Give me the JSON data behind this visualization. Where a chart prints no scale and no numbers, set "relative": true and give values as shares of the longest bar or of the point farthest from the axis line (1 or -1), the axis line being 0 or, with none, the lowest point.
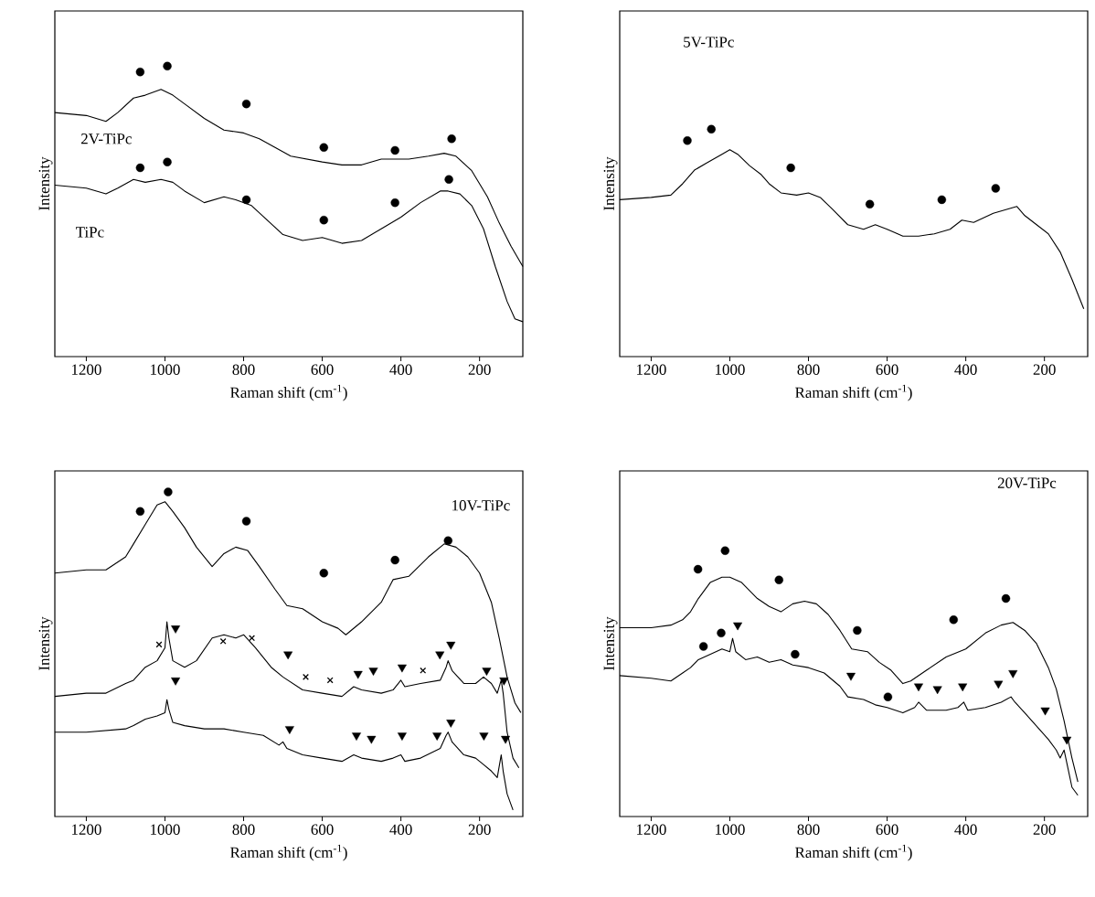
{
  "chart_data": [
    {
      "type": "line",
      "relative": true,
      "xlim": [
        1280,
        90
      ],
      "xticks": [
        1200,
        1000,
        800,
        600,
        400,
        200
      ],
      "xlabel": "Raman shift (cm$^{-1}$)",
      "ylabel": "Intensity",
      "annotations": [
        "2V-TiPc",
        "TiPc"
      ],
      "series": [
        {
          "type": "line",
          "color": "#000000",
          "x": [
            1280,
            1200,
            1150,
            1120,
            1080,
            1050,
            1010,
            980,
            950,
            900,
            850,
            800,
            760,
            720,
            680,
            640,
            600,
            550,
            500,
            450,
            420,
            380,
            330,
            290,
            260,
            220,
            180,
            150,
            120,
            90
          ],
          "values": [
            0.84,
            0.83,
            0.81,
            0.84,
            0.89,
            0.9,
            0.92,
            0.9,
            0.87,
            0.82,
            0.78,
            0.77,
            0.75,
            0.72,
            0.69,
            0.68,
            0.67,
            0.66,
            0.66,
            0.68,
            0.68,
            0.68,
            0.69,
            0.7,
            0.69,
            0.64,
            0.55,
            0.46,
            0.38,
            0.31
          ]
        },
        {
          "type": "line",
          "color": "#000000",
          "x": [
            1280,
            1200,
            1150,
            1120,
            1080,
            1050,
            1010,
            980,
            950,
            900,
            850,
            820,
            780,
            740,
            700,
            650,
            600,
            550,
            500,
            450,
            400,
            350,
            300,
            280,
            250,
            220,
            190,
            160,
            130,
            110,
            90
          ],
          "values": [
            0.59,
            0.58,
            0.56,
            0.58,
            0.61,
            0.6,
            0.61,
            0.6,
            0.57,
            0.53,
            0.55,
            0.54,
            0.52,
            0.47,
            0.42,
            0.4,
            0.41,
            0.39,
            0.4,
            0.44,
            0.48,
            0.53,
            0.57,
            0.57,
            0.56,
            0.52,
            0.44,
            0.31,
            0.19,
            0.13,
            0.12
          ]
        },
        {
          "type": "scatter",
          "marker": "circle",
          "color": "#000000",
          "x": [
            1063,
            994,
            793,
            596,
            415,
            271
          ],
          "values": [
            0.98,
            1.0,
            0.87,
            0.72,
            0.71,
            0.75
          ]
        },
        {
          "type": "scatter",
          "marker": "circle",
          "color": "#000000",
          "x": [
            1063,
            994,
            793,
            596,
            415,
            278
          ],
          "values": [
            0.65,
            0.67,
            0.54,
            0.47,
            0.53,
            0.61
          ]
        }
      ]
    },
    {
      "type": "line",
      "relative": true,
      "xlim": [
        1280,
        90
      ],
      "xticks": [
        1200,
        1000,
        800,
        600,
        400,
        200
      ],
      "xlabel": "Raman shift (cm$^{-1}$)",
      "ylabel": "Intensity",
      "annotations": [
        "5V-TiPc"
      ],
      "series": [
        {
          "type": "line",
          "color": "#000000",
          "x": [
            1280,
            1200,
            1150,
            1120,
            1090,
            1060,
            1020,
            1000,
            980,
            950,
            920,
            900,
            870,
            830,
            800,
            770,
            740,
            700,
            660,
            630,
            600,
            560,
            520,
            480,
            440,
            410,
            380,
            330,
            290,
            270,
            250,
            220,
            190,
            160,
            130,
            100
          ],
          "values": [
            0.69,
            0.7,
            0.71,
            0.76,
            0.82,
            0.85,
            0.89,
            0.91,
            0.89,
            0.84,
            0.8,
            0.76,
            0.72,
            0.71,
            0.72,
            0.7,
            0.65,
            0.58,
            0.56,
            0.58,
            0.56,
            0.53,
            0.53,
            0.54,
            0.56,
            0.6,
            0.59,
            0.63,
            0.65,
            0.66,
            0.62,
            0.58,
            0.54,
            0.46,
            0.34,
            0.21
          ]
        },
        {
          "type": "scatter",
          "marker": "circle",
          "color": "#000000",
          "x": [
            1108,
            1047,
            845,
            644,
            461,
            324
          ],
          "values": [
            0.95,
            1.0,
            0.83,
            0.67,
            0.69,
            0.74
          ]
        }
      ]
    },
    {
      "type": "line",
      "relative": true,
      "xlim": [
        1280,
        90
      ],
      "xticks": [
        1200,
        1000,
        800,
        600,
        400,
        200
      ],
      "xlabel": "Raman shift (cm$^{-1}$)",
      "ylabel": "Intensity",
      "annotations": [
        "10V-TiPc"
      ],
      "series": [
        {
          "type": "line",
          "color": "#000000",
          "x": [
            1280,
            1200,
            1150,
            1100,
            1080,
            1050,
            1020,
            1000,
            980,
            950,
            920,
            880,
            850,
            820,
            790,
            760,
            720,
            690,
            650,
            600,
            560,
            540,
            500,
            450,
            420,
            380,
            330,
            290,
            260,
            230,
            200,
            170,
            150,
            130,
            110,
            95
          ],
          "values": [
            0.75,
            0.76,
            0.76,
            0.8,
            0.84,
            0.9,
            0.96,
            0.97,
            0.94,
            0.89,
            0.83,
            0.77,
            0.81,
            0.83,
            0.82,
            0.77,
            0.7,
            0.65,
            0.64,
            0.6,
            0.58,
            0.56,
            0.6,
            0.66,
            0.73,
            0.74,
            0.8,
            0.84,
            0.83,
            0.8,
            0.75,
            0.66,
            0.55,
            0.43,
            0.35,
            0.32
          ]
        },
        {
          "type": "line",
          "color": "#000000",
          "x": [
            1280,
            1200,
            1150,
            1100,
            1080,
            1050,
            1020,
            1000,
            995,
            990,
            980,
            950,
            920,
            880,
            850,
            820,
            800,
            770,
            730,
            700,
            650,
            600,
            550,
            520,
            500,
            450,
            420,
            400,
            390,
            350,
            300,
            285,
            280,
            270,
            240,
            210,
            190,
            170,
            155,
            145,
            140,
            130,
            115,
            100
          ],
          "values": [
            0.37,
            0.38,
            0.38,
            0.41,
            0.42,
            0.46,
            0.48,
            0.52,
            0.6,
            0.55,
            0.48,
            0.46,
            0.48,
            0.55,
            0.56,
            0.55,
            0.56,
            0.52,
            0.46,
            0.43,
            0.39,
            0.38,
            0.37,
            0.4,
            0.39,
            0.38,
            0.39,
            0.42,
            0.4,
            0.41,
            0.42,
            0.46,
            0.48,
            0.45,
            0.41,
            0.41,
            0.43,
            0.41,
            0.38,
            0.42,
            0.38,
            0.26,
            0.18,
            0.15
          ]
        },
        {
          "type": "line",
          "color": "#000000",
          "x": [
            1280,
            1200,
            1100,
            1080,
            1050,
            1020,
            1000,
            995,
            990,
            980,
            950,
            900,
            850,
            800,
            750,
            710,
            700,
            690,
            650,
            600,
            550,
            520,
            500,
            450,
            420,
            400,
            390,
            350,
            300,
            285,
            280,
            270,
            240,
            210,
            190,
            170,
            155,
            145,
            140,
            130,
            115
          ],
          "values": [
            0.26,
            0.26,
            0.27,
            0.28,
            0.3,
            0.31,
            0.32,
            0.36,
            0.33,
            0.29,
            0.28,
            0.27,
            0.27,
            0.26,
            0.25,
            0.22,
            0.23,
            0.21,
            0.19,
            0.18,
            0.17,
            0.19,
            0.18,
            0.17,
            0.18,
            0.19,
            0.17,
            0.18,
            0.21,
            0.25,
            0.26,
            0.23,
            0.19,
            0.18,
            0.16,
            0.14,
            0.12,
            0.19,
            0.14,
            0.07,
            0.02
          ]
        },
        {
          "type": "scatter",
          "marker": "circle",
          "color": "#000000",
          "x": [
            1063,
            992,
            793,
            596,
            415,
            280
          ],
          "values": [
            0.94,
            1.0,
            0.91,
            0.75,
            0.79,
            0.85
          ]
        },
        {
          "type": "scatter",
          "marker": "triangle",
          "color": "#000000",
          "x": [
            973,
            687,
            509,
            470,
            397,
            301,
            273,
            182,
            138
          ],
          "values": [
            0.58,
            0.5,
            0.44,
            0.45,
            0.46,
            0.5,
            0.53,
            0.45,
            0.42
          ]
        },
        {
          "type": "scatter",
          "marker": "cross",
          "color": "#000000",
          "x": [
            1015,
            852,
            779,
            642,
            580,
            344
          ],
          "values": [
            0.53,
            0.54,
            0.55,
            0.43,
            0.42,
            0.45
          ]
        },
        {
          "type": "scatter",
          "marker": "triangle",
          "color": "#000000",
          "x": [
            973,
            683,
            513,
            475,
            397,
            308,
            273,
            189,
            134
          ],
          "values": [
            0.42,
            0.27,
            0.25,
            0.24,
            0.25,
            0.25,
            0.29,
            0.25,
            0.24
          ]
        }
      ]
    },
    {
      "type": "line",
      "relative": true,
      "xlim": [
        1280,
        90
      ],
      "xticks": [
        1200,
        1000,
        800,
        600,
        400,
        200
      ],
      "xlabel": "Raman shift (cm$^{-1}$)",
      "ylabel": "Intensity",
      "annotations": [
        "20V-TiPc"
      ],
      "series": [
        {
          "type": "line",
          "color": "#000000",
          "x": [
            1280,
            1200,
            1150,
            1120,
            1100,
            1080,
            1050,
            1020,
            1000,
            970,
            930,
            900,
            870,
            840,
            810,
            780,
            750,
            720,
            690,
            650,
            620,
            590,
            560,
            540,
            500,
            450,
            400,
            350,
            310,
            280,
            250,
            220,
            190,
            170,
            150,
            130,
            115
          ],
          "values": [
            0.71,
            0.71,
            0.72,
            0.74,
            0.77,
            0.82,
            0.88,
            0.9,
            0.9,
            0.88,
            0.82,
            0.79,
            0.77,
            0.8,
            0.81,
            0.8,
            0.76,
            0.7,
            0.63,
            0.62,
            0.58,
            0.55,
            0.5,
            0.51,
            0.55,
            0.6,
            0.63,
            0.69,
            0.72,
            0.73,
            0.7,
            0.65,
            0.56,
            0.48,
            0.36,
            0.22,
            0.13
          ]
        },
        {
          "type": "line",
          "color": "#000000",
          "x": [
            1280,
            1200,
            1150,
            1120,
            1100,
            1080,
            1050,
            1020,
            1000,
            993,
            985,
            960,
            930,
            900,
            870,
            840,
            800,
            760,
            720,
            700,
            660,
            630,
            600,
            560,
            530,
            520,
            500,
            450,
            420,
            405,
            395,
            350,
            310,
            285,
            275,
            250,
            220,
            190,
            170,
            160,
            150,
            140,
            130,
            115
          ],
          "values": [
            0.53,
            0.52,
            0.51,
            0.54,
            0.56,
            0.59,
            0.61,
            0.63,
            0.62,
            0.67,
            0.62,
            0.59,
            0.6,
            0.58,
            0.59,
            0.57,
            0.56,
            0.54,
            0.49,
            0.45,
            0.44,
            0.42,
            0.41,
            0.39,
            0.41,
            0.43,
            0.4,
            0.4,
            0.41,
            0.43,
            0.4,
            0.41,
            0.43,
            0.45,
            0.43,
            0.39,
            0.34,
            0.29,
            0.25,
            0.22,
            0.25,
            0.18,
            0.11,
            0.08
          ]
        },
        {
          "type": "scatter",
          "marker": "circle",
          "color": "#000000",
          "x": [
            1081,
            1012,
            875,
            676,
            431,
            298
          ],
          "values": [
            0.93,
            1.0,
            0.89,
            0.7,
            0.74,
            0.82
          ]
        },
        {
          "type": "scatter",
          "marker": "circle",
          "color": "#000000",
          "x": [
            1067,
            1022,
            834,
            598
          ],
          "values": [
            0.64,
            0.69,
            0.61,
            0.45
          ]
        },
        {
          "type": "scatter",
          "marker": "triangle",
          "color": "#000000",
          "x": [
            980,
            692,
            520,
            472,
            408,
            317,
            280,
            198,
            143
          ],
          "values": [
            0.72,
            0.53,
            0.49,
            0.48,
            0.49,
            0.5,
            0.54,
            0.4,
            0.29
          ]
        }
      ]
    }
  ]
}
